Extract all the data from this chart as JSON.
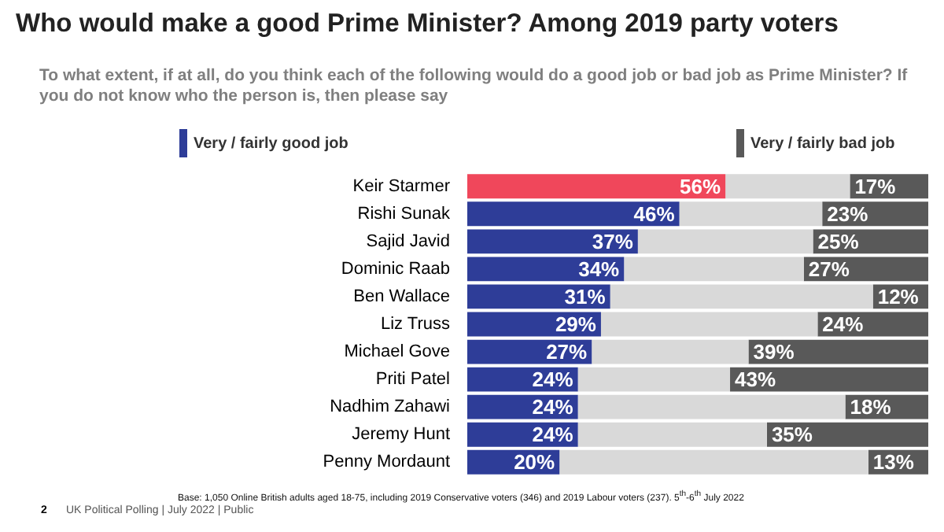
{
  "chart_data": {
    "type": "bar",
    "orientation": "horizontal",
    "stacked": true,
    "title": "Who would make a good Prime Minister? Among 2019 party voters",
    "subtitle": "To what extent, if at all, do you think each of the following would do a good job or bad job as Prime Minister? If you do not know who the person is, then please say",
    "categories": [
      "Keir Starmer",
      "Rishi Sunak",
      "Sajid Javid",
      "Dominic Raab",
      "Ben Wallace",
      "Liz Truss",
      "Michael Gove",
      "Priti Patel",
      "Nadhim Zahawi",
      "Jeremy Hunt",
      "Penny Mordaunt"
    ],
    "series": [
      {
        "name": "Very / fairly good job",
        "color": "#2e3d98",
        "colors": [
          "#f0475b",
          "#2e3d98",
          "#2e3d98",
          "#2e3d98",
          "#2e3d98",
          "#2e3d98",
          "#2e3d98",
          "#2e3d98",
          "#2e3d98",
          "#2e3d98",
          "#2e3d98"
        ],
        "values": [
          56,
          46,
          37,
          34,
          31,
          29,
          27,
          24,
          24,
          24,
          20
        ],
        "value_labels": [
          "56%",
          "46%",
          "37%",
          "34%",
          "31%",
          "29%",
          "27%",
          "24%",
          "24%",
          "24%",
          "20%"
        ]
      },
      {
        "color": "#d9d9d9",
        "values": [
          27,
          31,
          38,
          39,
          57,
          47,
          34,
          33,
          58,
          41,
          67
        ]
      },
      {
        "name": "Very / fairly bad job",
        "color": "#595959",
        "values": [
          17,
          23,
          25,
          27,
          12,
          24,
          39,
          43,
          18,
          35,
          13
        ],
        "value_labels": [
          "17%",
          "23%",
          "25%",
          "27%",
          "12%",
          "24%",
          "39%",
          "43%",
          "18%",
          "35%",
          "13%"
        ]
      }
    ],
    "xlim": [
      0,
      100
    ],
    "tick_labels": "y",
    "legend": "top",
    "annotations": [
      "Base: 1,050 Online British adults aged 18-75, including 2019 Conservative voters (346) and 2019 Labour voters (237). 5$^{th}$-6$^{th}$ July 2022",
      "2",
      "UK Political Polling | July 2022 | Public"
    ]
  }
}
